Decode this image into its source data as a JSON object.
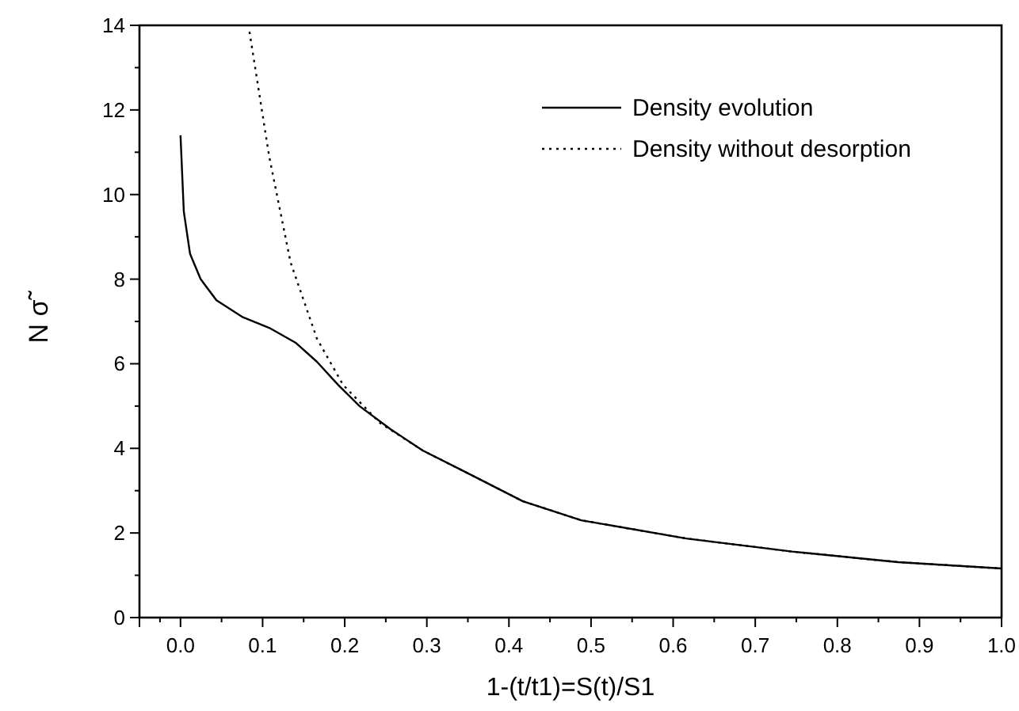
{
  "chart_data": {
    "type": "line",
    "xlabel": "1-(t/t1)=S(t)/S1",
    "ylabel": "N σ̃",
    "xlim": [
      -0.05,
      1.0
    ],
    "xticks": [
      {
        "value": -0.05,
        "label": null
      },
      {
        "value": 0,
        "label": "0.0"
      },
      0.1,
      0.2,
      0.3,
      0.4,
      0.5,
      0.6,
      0.7,
      0.8,
      0.9,
      {
        "value": 1,
        "label": "1.0"
      }
    ],
    "ylim": [
      0,
      14
    ],
    "yticks": [
      0,
      2,
      4,
      6,
      8,
      10,
      12,
      14
    ],
    "legend": "top right",
    "grid": false,
    "series": [
      {
        "name": "Density evolution",
        "color": "#000000",
        "line_style": "solid",
        "x": [
          0,
          0.004,
          0.0116,
          0.0245,
          0.0438,
          0.076,
          0.108,
          0.14,
          0.166,
          0.192,
          0.218,
          0.256,
          0.295,
          0.346,
          0.417,
          0.488,
          0.616,
          0.745,
          0.874,
          1.0
        ],
        "values": [
          11.4,
          9.6,
          8.6,
          8.0,
          7.5,
          7.1,
          6.85,
          6.5,
          6.05,
          5.5,
          5.0,
          4.45,
          3.95,
          3.45,
          2.75,
          2.3,
          1.87,
          1.56,
          1.31,
          1.16
        ]
      },
      {
        "name": "Density without desorption",
        "color": "#000000",
        "line_style": "dotted",
        "x": [
          0.084,
          0.108,
          0.134,
          0.166,
          0.198,
          0.243,
          0.295,
          0.346,
          0.417,
          0.488,
          0.616,
          0.745,
          0.874,
          1.0
        ],
        "values": [
          13.85,
          10.9,
          8.4,
          6.6,
          5.5,
          4.6,
          3.95,
          3.45,
          2.75,
          2.3,
          1.87,
          1.56,
          1.31,
          1.16
        ]
      }
    ]
  }
}
